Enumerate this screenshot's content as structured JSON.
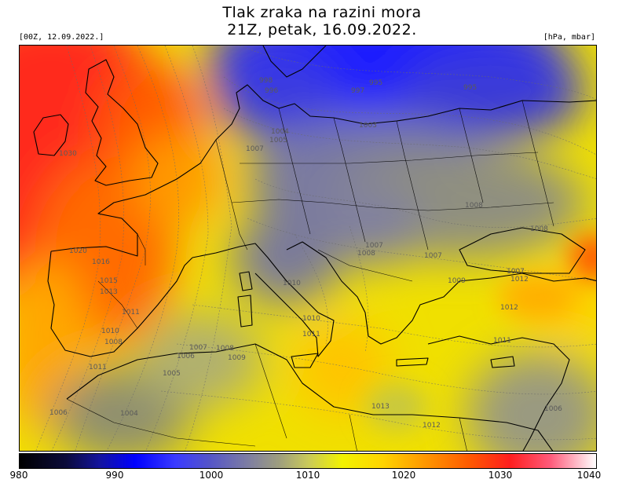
{
  "title": {
    "line1": "Tlak zraka na razini mora",
    "line2": "21Z, petak, 16.09.2022."
  },
  "run_info": "[00Z, 12.09.2022.]",
  "units": "[hPa, mbar]",
  "colorbar": {
    "ticks": [
      "980",
      "990",
      "1000",
      "1010",
      "1020",
      "1030",
      "1040"
    ]
  },
  "isobar_labels": [
    "998",
    "996",
    "997",
    "995",
    "995",
    "1004",
    "1005",
    "1003",
    "1007",
    "1020",
    "1016",
    "1015",
    "1013",
    "1011",
    "1010",
    "1008",
    "1007",
    "1008",
    "1009",
    "1006",
    "1005",
    "1004",
    "1010",
    "1010",
    "1011",
    "1012",
    "1013",
    "1012",
    "1011",
    "1008",
    "1007",
    "1006",
    "1007",
    "1008",
    "1009",
    "1008",
    "1007",
    "1011",
    "1012",
    "1006",
    "1030"
  ],
  "colors": {
    "high_pressure": "#ff1e1e",
    "low_pressure": "#0000ff",
    "neutral": "#9e9e7e"
  }
}
